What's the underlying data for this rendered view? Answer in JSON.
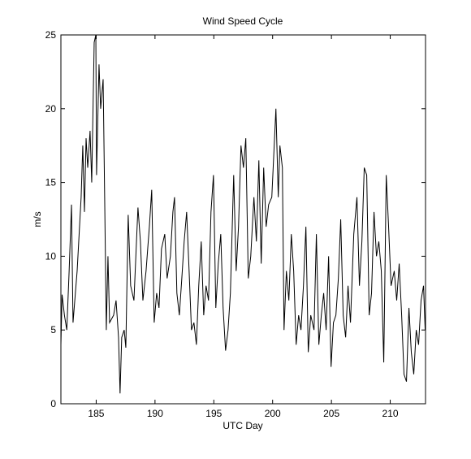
{
  "chart_data": {
    "type": "line",
    "title": "Wind Speed Cycle",
    "xlabel": "UTC Day",
    "ylabel": "m/s",
    "xlim": [
      182,
      213
    ],
    "ylim": [
      0,
      25
    ],
    "xticks": [
      185,
      190,
      195,
      200,
      205,
      210
    ],
    "yticks": [
      0,
      5,
      10,
      15,
      20,
      25
    ],
    "grid": false,
    "series": [
      {
        "color": "#000000",
        "x": [
          182.0,
          182.1,
          182.3,
          182.5,
          182.7,
          182.9,
          183.03,
          183.38,
          183.72,
          183.86,
          184.0,
          184.14,
          184.28,
          184.48,
          184.62,
          184.83,
          184.97,
          185.03,
          185.24,
          185.38,
          185.59,
          185.72,
          185.86,
          186.0,
          186.14,
          186.48,
          186.69,
          186.9,
          187.03,
          187.17,
          187.38,
          187.52,
          187.72,
          187.93,
          188.21,
          188.55,
          188.76,
          188.97,
          189.24,
          189.52,
          189.72,
          189.93,
          190.14,
          190.34,
          190.55,
          190.83,
          191.03,
          191.31,
          191.52,
          191.66,
          191.86,
          192.07,
          192.28,
          192.48,
          192.69,
          192.9,
          193.1,
          193.31,
          193.52,
          193.72,
          193.93,
          194.14,
          194.34,
          194.55,
          194.76,
          194.97,
          195.17,
          195.38,
          195.59,
          195.79,
          196.0,
          196.21,
          196.41,
          196.69,
          196.9,
          197.1,
          197.31,
          197.52,
          197.72,
          197.93,
          198.14,
          198.41,
          198.62,
          198.83,
          199.03,
          199.24,
          199.45,
          199.66,
          199.93,
          200.28,
          200.48,
          200.62,
          200.83,
          200.97,
          201.17,
          201.38,
          201.59,
          201.79,
          202.0,
          202.21,
          202.41,
          202.62,
          202.83,
          203.03,
          203.24,
          203.52,
          203.72,
          203.93,
          204.14,
          204.34,
          204.55,
          204.76,
          204.97,
          205.17,
          205.38,
          205.59,
          205.79,
          206.0,
          206.21,
          206.41,
          206.62,
          206.9,
          207.17,
          207.38,
          207.59,
          207.79,
          208.0,
          208.21,
          208.41,
          208.62,
          208.83,
          209.03,
          209.24,
          209.45,
          209.66,
          209.86,
          210.07,
          210.34,
          210.55,
          210.76,
          210.97,
          211.17,
          211.38,
          211.59,
          211.79,
          212.0,
          212.21,
          212.41,
          212.62,
          212.83,
          212.97
        ],
        "values": [
          4,
          7.4,
          6,
          5,
          9,
          13.5,
          5.5,
          9,
          14,
          17.5,
          13,
          18,
          16,
          18.5,
          15,
          24.5,
          25,
          15.5,
          23,
          20,
          22,
          14,
          5,
          10,
          5.5,
          6,
          7,
          4.5,
          0.7,
          4.5,
          5,
          3.8,
          12.8,
          8,
          7,
          13.3,
          11,
          7,
          9,
          12,
          14.5,
          5.5,
          7.5,
          6.5,
          10.5,
          11.5,
          8.5,
          10,
          13,
          14,
          7.5,
          6,
          8.5,
          11,
          13,
          9,
          5,
          5.5,
          4,
          8,
          11,
          6,
          8,
          7,
          13,
          15.5,
          6.5,
          9.5,
          11.5,
          6.5,
          3.6,
          5,
          7.5,
          15.5,
          9,
          12,
          17.5,
          16,
          18,
          8.5,
          10,
          14,
          11,
          16.5,
          9.5,
          16,
          12,
          13.5,
          14,
          20,
          14,
          17.5,
          16,
          5,
          9,
          7,
          11.5,
          9,
          4,
          6,
          5,
          8,
          12,
          3.5,
          6,
          5,
          11.5,
          4,
          6,
          7.5,
          5,
          10,
          2.5,
          5.5,
          6,
          8.5,
          12.5,
          6,
          4.5,
          8,
          5.5,
          11.5,
          14,
          8,
          11,
          16,
          15.5,
          6,
          7.5,
          13,
          10,
          11,
          9,
          2.8,
          15.5,
          12,
          8,
          9,
          7,
          9.5,
          6,
          2,
          1.5,
          6.5,
          3.5,
          2,
          5,
          4,
          7,
          8,
          5
        ]
      }
    ]
  }
}
